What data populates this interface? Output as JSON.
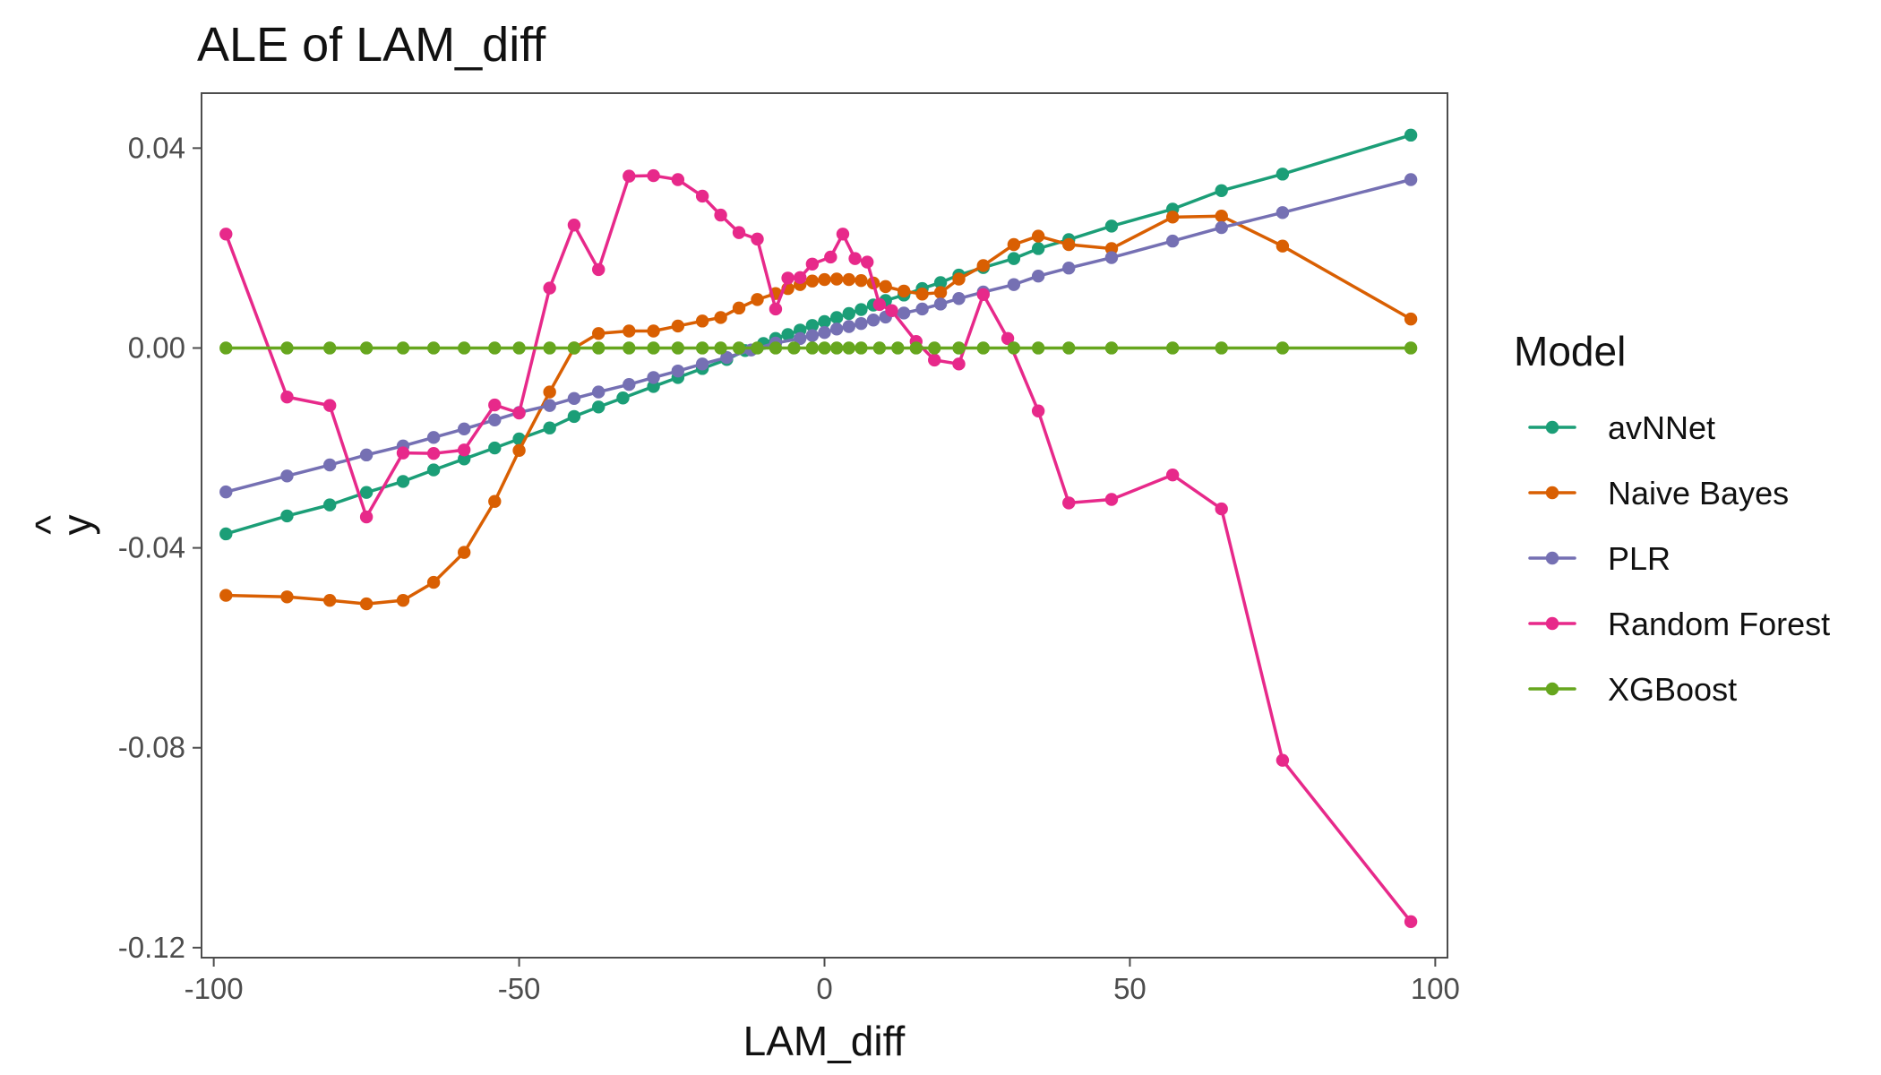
{
  "chart_data": {
    "type": "line",
    "title": "ALE of LAM_diff",
    "xlabel": "LAM_diff",
    "ylabel": "^\ny",
    "xlim": [
      -102,
      102
    ],
    "ylim": [
      -0.122,
      0.051
    ],
    "x_ticks": [
      -100,
      -50,
      0,
      50,
      100
    ],
    "x_tick_labels": [
      "-100",
      "-50",
      "0",
      "50",
      "100"
    ],
    "y_ticks": [
      -0.12,
      -0.08,
      -0.04,
      0.0,
      0.04
    ],
    "y_tick_labels": [
      "-0.12",
      "-0.08",
      "-0.04",
      "0.00",
      "0.04"
    ],
    "grid": false,
    "legend": {
      "title": "Model",
      "position": "right"
    },
    "series": [
      {
        "name": "avNNet",
        "color": "#1b9e77",
        "x": [
          -98,
          -88,
          -81,
          -75,
          -69,
          -64,
          -59,
          -54,
          -50,
          -45,
          -41,
          -37,
          -33,
          -28,
          -24,
          -20,
          -16,
          -13,
          -10,
          -8,
          -6,
          -4,
          -2,
          0,
          2,
          4,
          6,
          8,
          10,
          13,
          16,
          19,
          22,
          26,
          31,
          35,
          40,
          47,
          57,
          65,
          75,
          96
        ],
        "y": [
          -0.0372,
          -0.0336,
          -0.0314,
          -0.0289,
          -0.0267,
          -0.0244,
          -0.0222,
          -0.02,
          -0.0182,
          -0.016,
          -0.0137,
          -0.0118,
          -0.01,
          -0.0077,
          -0.0059,
          -0.0041,
          -0.0023,
          -0.0005,
          0.0009,
          0.0019,
          0.0027,
          0.0036,
          0.0045,
          0.0053,
          0.0061,
          0.0069,
          0.0077,
          0.0086,
          0.0095,
          0.0106,
          0.0119,
          0.0131,
          0.0146,
          0.0161,
          0.0179,
          0.0199,
          0.0217,
          0.0244,
          0.0278,
          0.0315,
          0.0348,
          0.0426
        ]
      },
      {
        "name": "Naive Bayes",
        "color": "#d95f02",
        "x": [
          -98,
          -88,
          -81,
          -75,
          -69,
          -64,
          -59,
          -54,
          -50,
          -45,
          -41,
          -37,
          -32,
          -28,
          -24,
          -20,
          -17,
          -14,
          -11,
          -8,
          -6,
          -4,
          -2,
          0,
          2,
          4,
          6,
          8,
          10,
          13,
          16,
          19,
          22,
          26,
          31,
          35,
          40,
          47,
          57,
          65,
          75,
          96
        ],
        "y": [
          -0.0495,
          -0.0498,
          -0.0505,
          -0.0512,
          -0.0505,
          -0.0469,
          -0.0409,
          -0.0307,
          -0.0205,
          -0.0088,
          0.0,
          0.0029,
          0.0034,
          0.0034,
          0.0044,
          0.0054,
          0.0061,
          0.008,
          0.0097,
          0.0109,
          0.0119,
          0.0127,
          0.0134,
          0.0137,
          0.0138,
          0.0137,
          0.0135,
          0.013,
          0.0123,
          0.0114,
          0.0108,
          0.0111,
          0.0138,
          0.0165,
          0.0207,
          0.0224,
          0.0207,
          0.0199,
          0.0262,
          0.0264,
          0.0204,
          0.0058
        ]
      },
      {
        "name": "PLR",
        "color": "#7570b3",
        "x": [
          -98,
          -88,
          -81,
          -75,
          -69,
          -64,
          -59,
          -54,
          -50,
          -45,
          -41,
          -37,
          -32,
          -28,
          -24,
          -20,
          -16,
          -12,
          -8,
          -4,
          -2,
          0,
          2,
          4,
          6,
          8,
          10,
          13,
          16,
          19,
          22,
          26,
          31,
          35,
          40,
          47,
          57,
          65,
          75,
          96
        ],
        "y": [
          -0.0288,
          -0.0256,
          -0.0234,
          -0.0214,
          -0.0196,
          -0.0179,
          -0.0162,
          -0.0144,
          -0.0129,
          -0.0115,
          -0.0101,
          -0.0088,
          -0.0073,
          -0.0059,
          -0.0046,
          -0.0032,
          -0.0019,
          -0.0004,
          0.001,
          0.0019,
          0.0025,
          0.0031,
          0.0038,
          0.0043,
          0.0049,
          0.0056,
          0.0062,
          0.007,
          0.0078,
          0.0088,
          0.0099,
          0.0112,
          0.0127,
          0.0144,
          0.016,
          0.0181,
          0.0214,
          0.0241,
          0.0271,
          0.0337
        ]
      },
      {
        "name": "Random Forest",
        "color": "#e7298a",
        "x": [
          -98,
          -88,
          -81,
          -75,
          -69,
          -64,
          -59,
          -54,
          -50,
          -45,
          -41,
          -37,
          -32,
          -28,
          -24,
          -20,
          -17,
          -14,
          -11,
          -8,
          -6,
          -4,
          -2,
          1,
          3,
          5,
          7,
          9,
          11,
          15,
          18,
          22,
          26,
          30,
          35,
          40,
          47,
          57,
          65,
          75,
          96
        ],
        "y": [
          0.0228,
          -0.0098,
          -0.0115,
          -0.0338,
          -0.021,
          -0.0211,
          -0.0204,
          -0.0114,
          -0.013,
          0.012,
          0.0246,
          0.0157,
          0.0344,
          0.0345,
          0.0337,
          0.0304,
          0.0266,
          0.0231,
          0.0218,
          0.0078,
          0.014,
          0.0141,
          0.0168,
          0.0182,
          0.0228,
          0.0179,
          0.0172,
          0.0087,
          0.0075,
          0.0013,
          -0.0024,
          -0.0032,
          0.0107,
          0.0019,
          -0.0126,
          -0.031,
          -0.0303,
          -0.0254,
          -0.0322,
          -0.0825,
          -0.1148
        ]
      },
      {
        "name": "XGBoost",
        "color": "#66a61e",
        "x": [
          -98,
          -88,
          -81,
          -75,
          -69,
          -64,
          -59,
          -54,
          -50,
          -45,
          -41,
          -37,
          -32,
          -28,
          -24,
          -20,
          -17,
          -14,
          -11,
          -8,
          -5,
          -2,
          0,
          2,
          4,
          6,
          9,
          12,
          15,
          18,
          22,
          26,
          31,
          35,
          40,
          47,
          57,
          65,
          75,
          96
        ],
        "y": [
          0.0,
          0.0,
          0.0,
          0.0,
          0.0,
          0.0,
          0.0,
          0.0,
          0.0,
          0.0,
          0.0,
          0.0,
          0.0,
          0.0,
          0.0,
          0.0,
          0.0,
          0.0,
          0.0,
          0.0,
          0.0,
          0.0,
          0.0,
          0.0,
          0.0,
          0.0,
          0.0,
          0.0,
          0.0,
          0.0,
          0.0,
          0.0,
          0.0,
          0.0,
          0.0,
          0.0,
          0.0,
          0.0,
          0.0,
          0.0
        ]
      }
    ]
  }
}
